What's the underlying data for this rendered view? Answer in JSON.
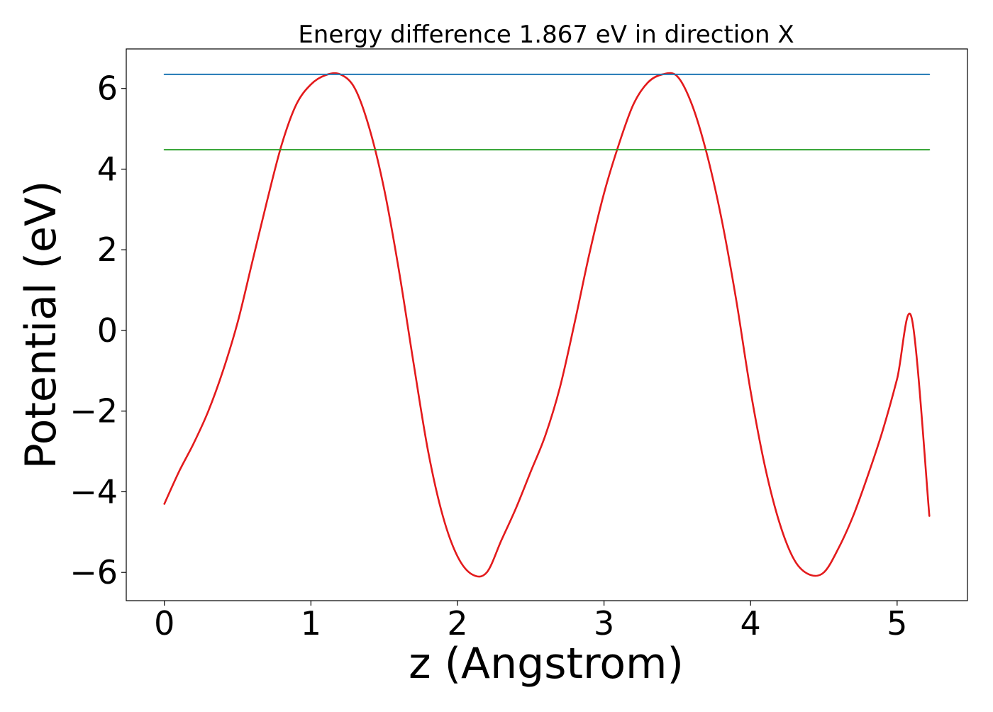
{
  "chart_data": {
    "type": "line",
    "title": "Energy difference 1.867 eV in direction X",
    "xlabel": "z (Angstrom)",
    "ylabel": "Potential (eV)",
    "xlim": [
      -0.26,
      5.48
    ],
    "ylim": [
      -6.7,
      6.98
    ],
    "xticks": [
      0,
      1,
      2,
      3,
      4,
      5
    ],
    "xtick_labels": [
      "0",
      "1",
      "2",
      "3",
      "4",
      "5"
    ],
    "yticks": [
      -6,
      -4,
      -2,
      0,
      2,
      4,
      6
    ],
    "ytick_labels": [
      "−6",
      "−4",
      "−2",
      "0",
      "2",
      "4",
      "6"
    ],
    "grid": false,
    "legend": "none",
    "colors": {
      "potential": "#e31a1c",
      "max_level": "#1f77b4",
      "mean_level": "#2ca02c"
    },
    "series": [
      {
        "key": "potential",
        "x": [
          0,
          0.1,
          0.2,
          0.3,
          0.4,
          0.5,
          0.6,
          0.7,
          0.8,
          0.9,
          1.0,
          1.1,
          1.2,
          1.3,
          1.4,
          1.5,
          1.6,
          1.7,
          1.8,
          1.9,
          2.0,
          2.1,
          2.2,
          2.3,
          2.4,
          2.5,
          2.6,
          2.7,
          2.8,
          2.9,
          3.0,
          3.1,
          3.2,
          3.3,
          3.4,
          3.5,
          3.6,
          3.7,
          3.8,
          3.9,
          4.0,
          4.1,
          4.2,
          4.3,
          4.4,
          4.5,
          4.6,
          4.7,
          4.8,
          4.9,
          5.0,
          5.1,
          5.22
        ],
        "y": [
          -4.3,
          -3.5,
          -2.8,
          -2.0,
          -1.0,
          0.2,
          1.7,
          3.2,
          4.6,
          5.6,
          6.1,
          6.33,
          6.35,
          6.0,
          5.0,
          3.5,
          1.5,
          -0.8,
          -3.0,
          -4.6,
          -5.6,
          -6.05,
          -6.0,
          -5.2,
          -4.4,
          -3.5,
          -2.6,
          -1.4,
          0.2,
          1.9,
          3.4,
          4.6,
          5.6,
          6.15,
          6.35,
          6.3,
          5.6,
          4.4,
          2.8,
          0.8,
          -1.5,
          -3.4,
          -4.8,
          -5.7,
          -6.05,
          -6.0,
          -5.4,
          -4.6,
          -3.6,
          -2.5,
          -1.2,
          0.3,
          -4.6
        ]
      },
      {
        "key": "max_level",
        "x": [
          0,
          5.22
        ],
        "y": [
          6.35,
          6.35
        ]
      },
      {
        "key": "mean_level",
        "x": [
          0,
          5.22
        ],
        "y": [
          4.48,
          4.48
        ]
      }
    ]
  }
}
